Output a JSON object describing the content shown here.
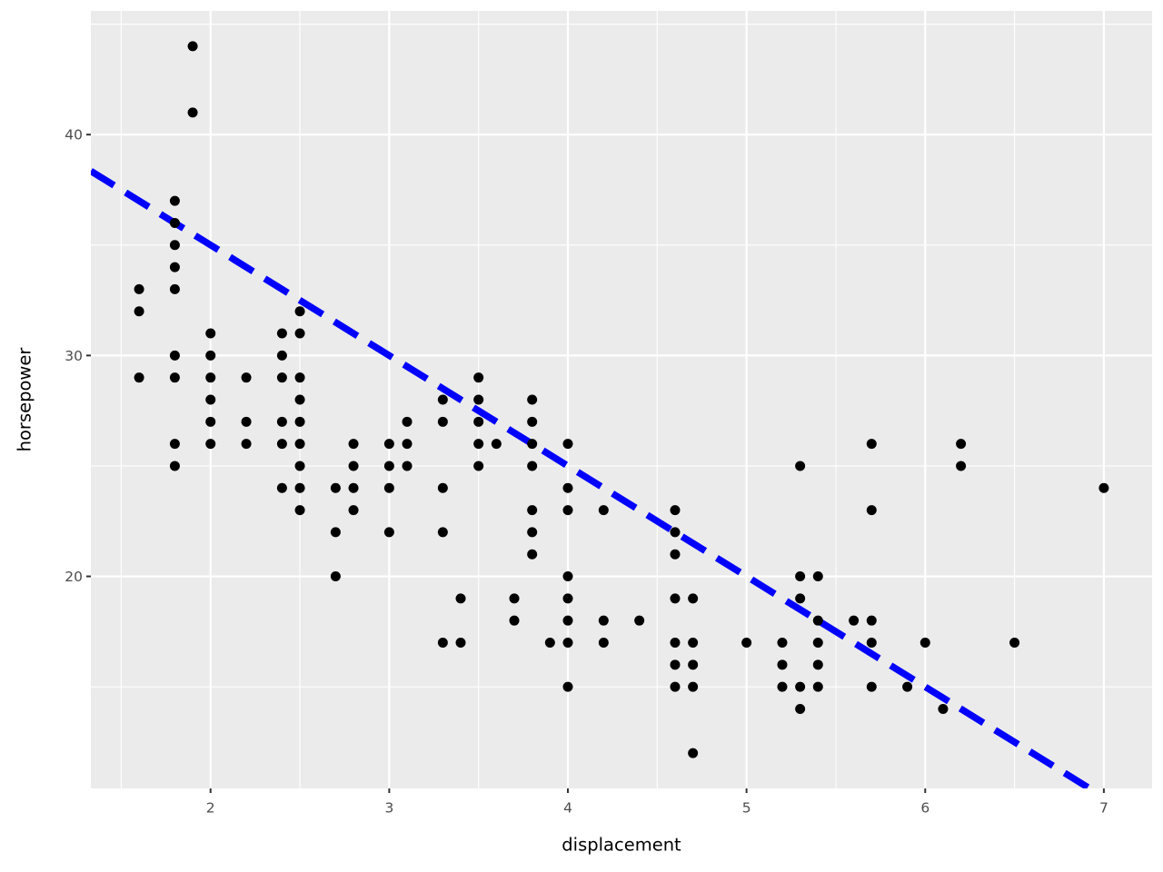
{
  "chart_data": {
    "type": "scatter",
    "x_label": "displacement",
    "y_label": "horsepower",
    "x": [
      1.6,
      1.6,
      1.6,
      1.8,
      1.8,
      1.8,
      1.8,
      1.8,
      1.8,
      1.8,
      1.8,
      1.8,
      1.9,
      1.9,
      2.0,
      2.0,
      2.0,
      2.0,
      2.0,
      2.0,
      2.2,
      2.2,
      2.2,
      2.4,
      2.4,
      2.4,
      2.4,
      2.4,
      2.4,
      2.5,
      2.5,
      2.5,
      2.5,
      2.5,
      2.5,
      2.5,
      2.5,
      2.5,
      2.7,
      2.7,
      2.7,
      2.8,
      2.8,
      2.8,
      2.8,
      3.0,
      3.0,
      3.0,
      3.0,
      3.1,
      3.1,
      3.1,
      3.3,
      3.3,
      3.3,
      3.3,
      3.3,
      3.4,
      3.4,
      3.5,
      3.5,
      3.5,
      3.5,
      3.5,
      3.6,
      3.7,
      3.7,
      3.8,
      3.8,
      3.8,
      3.8,
      3.8,
      3.8,
      3.8,
      3.9,
      4.0,
      4.0,
      4.0,
      4.0,
      4.0,
      4.0,
      4.0,
      4.0,
      4.2,
      4.2,
      4.2,
      4.4,
      4.6,
      4.6,
      4.6,
      4.6,
      4.6,
      4.6,
      4.6,
      4.7,
      4.7,
      4.7,
      4.7,
      4.7,
      5.0,
      5.2,
      5.2,
      5.2,
      5.3,
      5.3,
      5.3,
      5.3,
      5.3,
      5.4,
      5.4,
      5.4,
      5.4,
      5.4,
      5.6,
      5.7,
      5.7,
      5.7,
      5.7,
      5.7,
      5.9,
      6.0,
      6.1,
      6.2,
      6.2,
      6.5,
      7.0
    ],
    "values": [
      33,
      32,
      29,
      37,
      36,
      35,
      34,
      33,
      30,
      29,
      26,
      25,
      44,
      41,
      31,
      30,
      29,
      28,
      27,
      26,
      29,
      27,
      26,
      31,
      30,
      29,
      27,
      26,
      24,
      32,
      31,
      29,
      28,
      27,
      26,
      25,
      24,
      23,
      24,
      22,
      20,
      26,
      25,
      24,
      23,
      26,
      25,
      24,
      22,
      27,
      26,
      25,
      28,
      27,
      24,
      22,
      17,
      19,
      17,
      29,
      28,
      27,
      26,
      25,
      26,
      19,
      18,
      28,
      27,
      26,
      25,
      23,
      22,
      21,
      17,
      26,
      24,
      23,
      20,
      19,
      18,
      17,
      15,
      23,
      18,
      17,
      18,
      23,
      22,
      21,
      19,
      17,
      16,
      15,
      19,
      17,
      16,
      15,
      12,
      17,
      17,
      16,
      15,
      25,
      20,
      19,
      15,
      14,
      20,
      18,
      17,
      16,
      15,
      18,
      26,
      23,
      18,
      17,
      15,
      15,
      17,
      14,
      26,
      25,
      17,
      24
    ],
    "color": "#000000",
    "abline": {
      "intercept": 45,
      "slope": -5,
      "color": "#0000ff",
      "linetype": "dashed"
    },
    "xlim": [
      1.33,
      7.27
    ],
    "ylim": [
      10.4,
      45.6
    ],
    "xticks": [
      2,
      3,
      4,
      5,
      6,
      7
    ],
    "yticks": [
      20,
      30,
      40
    ],
    "x_minor_breaks": [
      1.5,
      2.5,
      3.5,
      4.5,
      5.5,
      6.5
    ],
    "y_minor_breaks": [
      15,
      25,
      35,
      45
    ],
    "grid": true
  }
}
